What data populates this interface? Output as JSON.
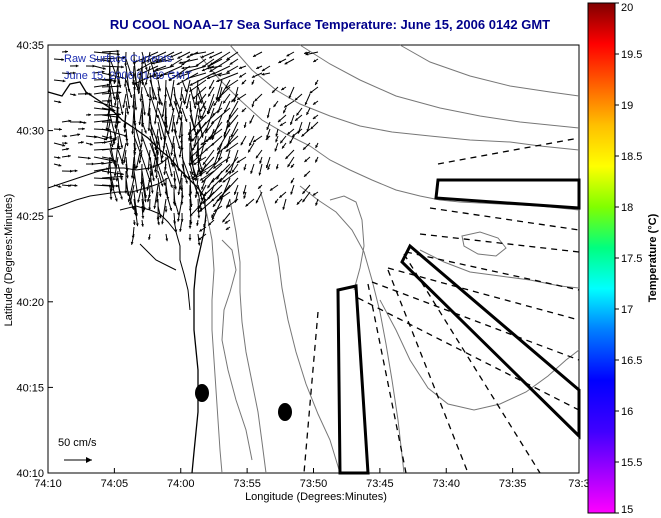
{
  "chart_data": {
    "type": "map",
    "title": "RU COOL  NOAA–17  Sea Surface Temperature:  June 15, 2006 0142 GMT",
    "xlabel": "Longitude (Degrees:Minutes)",
    "ylabel": "Latitude (Degrees:Minutes)",
    "x_ticks": [
      "74:10",
      "74:05",
      "74:00",
      "73:55",
      "73:50",
      "73:45",
      "73:40",
      "73:35",
      "73:3"
    ],
    "y_ticks": [
      "40:35",
      "40:30",
      "40:25",
      "40:20",
      "40:15",
      "40:10"
    ],
    "x_range_minutes_west": [
      10,
      30
    ],
    "y_range_minutes": [
      10,
      35
    ],
    "legend_label": "Raw Surface Currents",
    "legend_time": "June 15, 2006 01:00 GMT",
    "scale_label": "50 cm/s",
    "colorbar": {
      "label": "Temperature (°C)",
      "min": 15,
      "max": 20,
      "ticks": [
        "20",
        "19.5",
        "19",
        "18.5",
        "18",
        "17.5",
        "17",
        "16.5",
        "16",
        "15.5",
        "15"
      ]
    },
    "station_markers": [
      {
        "lon_min_w": 8.8,
        "lat_min": 14.6
      },
      {
        "lon_min_w": 1.3,
        "lat_min": 13.5
      }
    ],
    "grid": false
  }
}
